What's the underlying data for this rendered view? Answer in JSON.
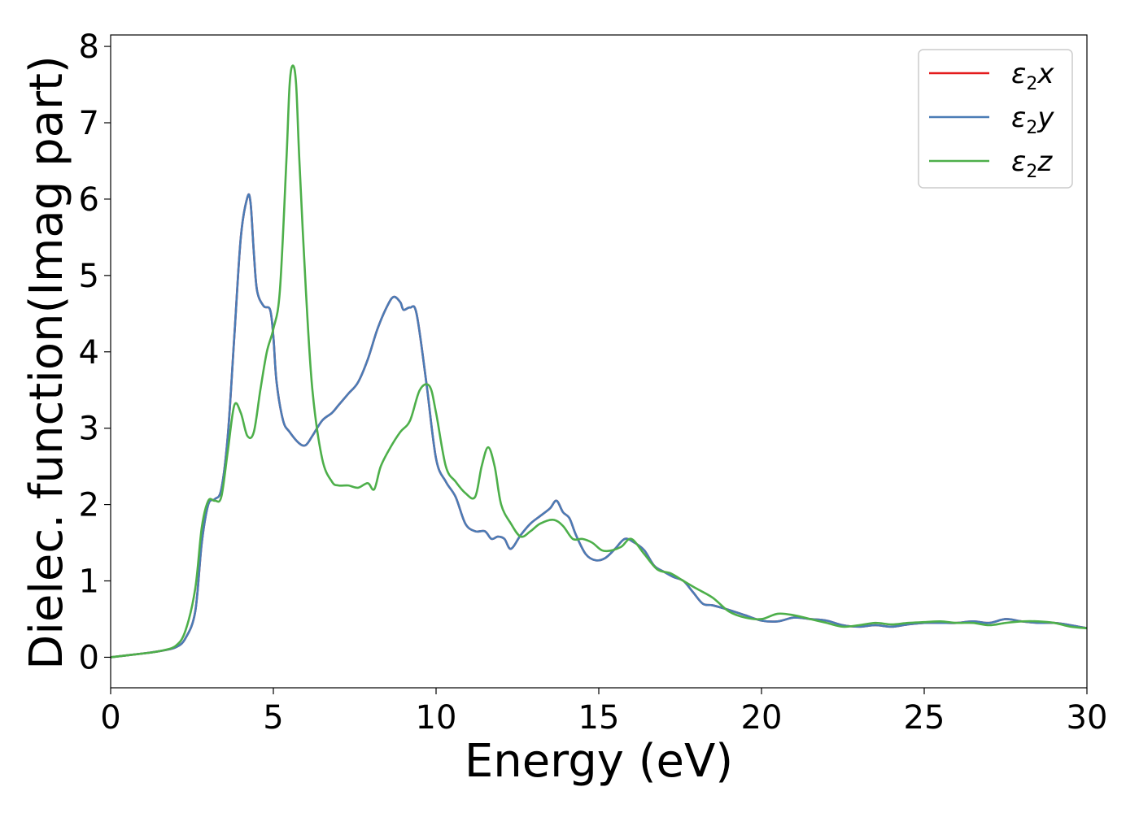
{
  "chart_data": {
    "type": "line",
    "xlabel": "Energy (eV)",
    "ylabel": "Dielec. function(Imag part)",
    "xlim": [
      0,
      30
    ],
    "ylim": [
      -0.4,
      8.15
    ],
    "xticks": [
      0,
      5,
      10,
      15,
      20,
      25,
      30
    ],
    "yticks": [
      0,
      1,
      2,
      3,
      4,
      5,
      6,
      7,
      8
    ],
    "grid": false,
    "legend_position": "top-right",
    "series": [
      {
        "name": "ε2x",
        "legend": {
          "base": "ε",
          "sub": "2",
          "suffix": "x"
        },
        "color": "#e41a1c",
        "x": [
          0,
          1,
          1.5,
          2,
          2.3,
          2.6,
          2.8,
          3.0,
          3.2,
          3.4,
          3.6,
          3.8,
          4.0,
          4.2,
          4.3,
          4.4,
          4.5,
          4.7,
          4.9,
          5.0,
          5.1,
          5.3,
          5.5,
          5.8,
          6.0,
          6.2,
          6.5,
          6.8,
          7.0,
          7.3,
          7.6,
          7.9,
          8.2,
          8.5,
          8.7,
          8.9,
          9.0,
          9.2,
          9.4,
          9.7,
          10.0,
          10.3,
          10.6,
          10.9,
          11.2,
          11.5,
          11.7,
          11.9,
          12.1,
          12.3,
          12.6,
          12.9,
          13.2,
          13.5,
          13.7,
          13.9,
          14.1,
          14.3,
          14.6,
          14.9,
          15.2,
          15.5,
          15.8,
          16.1,
          16.4,
          16.7,
          17.0,
          17.3,
          17.6,
          17.9,
          18.2,
          18.5,
          19.0,
          19.5,
          20.0,
          20.5,
          21.0,
          21.5,
          22.0,
          22.5,
          23.0,
          23.5,
          24.0,
          24.5,
          25.0,
          25.5,
          26.0,
          26.5,
          27.0,
          27.5,
          28.0,
          28.5,
          29.0,
          29.5,
          30.0
        ],
        "y": [
          0,
          0.05,
          0.08,
          0.13,
          0.25,
          0.6,
          1.5,
          2.0,
          2.07,
          2.2,
          2.9,
          4.2,
          5.5,
          6.02,
          5.95,
          5.3,
          4.8,
          4.6,
          4.55,
          4.2,
          3.6,
          3.1,
          2.95,
          2.8,
          2.78,
          2.9,
          3.1,
          3.2,
          3.3,
          3.45,
          3.6,
          3.9,
          4.3,
          4.6,
          4.72,
          4.65,
          4.55,
          4.58,
          4.5,
          3.6,
          2.6,
          2.3,
          2.1,
          1.75,
          1.65,
          1.65,
          1.55,
          1.58,
          1.55,
          1.42,
          1.6,
          1.75,
          1.85,
          1.95,
          2.05,
          1.9,
          1.82,
          1.6,
          1.35,
          1.27,
          1.3,
          1.42,
          1.55,
          1.5,
          1.4,
          1.2,
          1.12,
          1.05,
          1.0,
          0.85,
          0.7,
          0.68,
          0.62,
          0.55,
          0.48,
          0.47,
          0.52,
          0.5,
          0.48,
          0.42,
          0.4,
          0.42,
          0.4,
          0.43,
          0.45,
          0.45,
          0.45,
          0.47,
          0.45,
          0.5,
          0.47,
          0.45,
          0.45,
          0.42,
          0.38
        ]
      },
      {
        "name": "ε2y",
        "legend": {
          "base": "ε",
          "sub": "2",
          "suffix": "y"
        },
        "color": "#4a7cb6",
        "x": [
          0,
          1,
          1.5,
          2,
          2.3,
          2.6,
          2.8,
          3.0,
          3.2,
          3.4,
          3.6,
          3.8,
          4.0,
          4.2,
          4.3,
          4.4,
          4.5,
          4.7,
          4.9,
          5.0,
          5.1,
          5.3,
          5.5,
          5.8,
          6.0,
          6.2,
          6.5,
          6.8,
          7.0,
          7.3,
          7.6,
          7.9,
          8.2,
          8.5,
          8.7,
          8.9,
          9.0,
          9.2,
          9.4,
          9.7,
          10.0,
          10.3,
          10.6,
          10.9,
          11.2,
          11.5,
          11.7,
          11.9,
          12.1,
          12.3,
          12.6,
          12.9,
          13.2,
          13.5,
          13.7,
          13.9,
          14.1,
          14.3,
          14.6,
          14.9,
          15.2,
          15.5,
          15.8,
          16.1,
          16.4,
          16.7,
          17.0,
          17.3,
          17.6,
          17.9,
          18.2,
          18.5,
          19.0,
          19.5,
          20.0,
          20.5,
          21.0,
          21.5,
          22.0,
          22.5,
          23.0,
          23.5,
          24.0,
          24.5,
          25.0,
          25.5,
          26.0,
          26.5,
          27.0,
          27.5,
          28.0,
          28.5,
          29.0,
          29.5,
          30.0
        ],
        "y": [
          0,
          0.05,
          0.08,
          0.13,
          0.25,
          0.6,
          1.5,
          2.0,
          2.07,
          2.2,
          2.9,
          4.2,
          5.5,
          6.02,
          5.95,
          5.3,
          4.8,
          4.6,
          4.55,
          4.2,
          3.6,
          3.1,
          2.95,
          2.8,
          2.78,
          2.9,
          3.1,
          3.2,
          3.3,
          3.45,
          3.6,
          3.9,
          4.3,
          4.6,
          4.72,
          4.65,
          4.55,
          4.58,
          4.5,
          3.6,
          2.6,
          2.3,
          2.1,
          1.75,
          1.65,
          1.65,
          1.55,
          1.58,
          1.55,
          1.42,
          1.6,
          1.75,
          1.85,
          1.95,
          2.05,
          1.9,
          1.82,
          1.6,
          1.35,
          1.27,
          1.3,
          1.42,
          1.55,
          1.5,
          1.4,
          1.2,
          1.12,
          1.05,
          1.0,
          0.85,
          0.7,
          0.68,
          0.62,
          0.55,
          0.48,
          0.47,
          0.52,
          0.5,
          0.48,
          0.42,
          0.4,
          0.42,
          0.4,
          0.43,
          0.45,
          0.45,
          0.45,
          0.47,
          0.45,
          0.5,
          0.47,
          0.45,
          0.45,
          0.42,
          0.38
        ]
      },
      {
        "name": "ε2z",
        "legend": {
          "base": "ε",
          "sub": "2",
          "suffix": "z"
        },
        "color": "#4daf4a",
        "x": [
          0,
          1,
          1.5,
          2,
          2.3,
          2.6,
          2.8,
          3.0,
          3.2,
          3.4,
          3.6,
          3.8,
          4.0,
          4.2,
          4.4,
          4.6,
          4.8,
          5.0,
          5.2,
          5.4,
          5.5,
          5.6,
          5.7,
          5.8,
          6.0,
          6.2,
          6.5,
          6.8,
          7.0,
          7.3,
          7.6,
          7.9,
          8.1,
          8.3,
          8.6,
          8.9,
          9.2,
          9.5,
          9.8,
          10.0,
          10.3,
          10.6,
          10.9,
          11.2,
          11.4,
          11.6,
          11.8,
          12.0,
          12.3,
          12.6,
          12.9,
          13.2,
          13.6,
          13.9,
          14.2,
          14.5,
          14.8,
          15.1,
          15.4,
          15.7,
          16.0,
          16.4,
          16.8,
          17.2,
          17.6,
          18.0,
          18.5,
          19.0,
          19.5,
          20.0,
          20.5,
          21.0,
          21.5,
          22.0,
          22.5,
          23.0,
          23.5,
          24.0,
          24.5,
          25.0,
          25.5,
          26.0,
          26.5,
          27.0,
          27.5,
          28.0,
          28.5,
          29.0,
          29.5,
          30.0
        ],
        "y": [
          0,
          0.05,
          0.08,
          0.15,
          0.35,
          0.9,
          1.7,
          2.05,
          2.05,
          2.1,
          2.7,
          3.3,
          3.2,
          2.9,
          2.95,
          3.5,
          4.0,
          4.3,
          4.8,
          6.5,
          7.5,
          7.75,
          7.5,
          6.5,
          4.8,
          3.5,
          2.6,
          2.3,
          2.25,
          2.25,
          2.22,
          2.28,
          2.2,
          2.5,
          2.75,
          2.95,
          3.1,
          3.5,
          3.55,
          3.2,
          2.5,
          2.3,
          2.15,
          2.1,
          2.5,
          2.75,
          2.5,
          2.0,
          1.75,
          1.58,
          1.65,
          1.75,
          1.8,
          1.72,
          1.55,
          1.55,
          1.5,
          1.4,
          1.4,
          1.45,
          1.55,
          1.35,
          1.15,
          1.1,
          1.0,
          0.9,
          0.78,
          0.6,
          0.52,
          0.5,
          0.57,
          0.55,
          0.5,
          0.45,
          0.4,
          0.42,
          0.45,
          0.43,
          0.45,
          0.46,
          0.47,
          0.45,
          0.45,
          0.42,
          0.45,
          0.47,
          0.47,
          0.45,
          0.4,
          0.38
        ]
      }
    ]
  }
}
